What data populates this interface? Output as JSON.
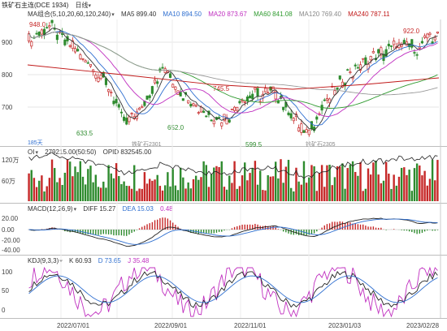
{
  "header": {
    "title": "铁矿石主连(DCE 1934)",
    "period": "日线",
    "ma_label": "MA组合(5,10,20,60,120,240)",
    "ma": [
      {
        "label": "MA5 899.40",
        "color": "#333333"
      },
      {
        "label": "MA10 894.50",
        "color": "#2f6fd0"
      },
      {
        "label": "MA20 873.67",
        "color": "#c030c0"
      },
      {
        "label": "MA60 841.08",
        "color": "#2e9a2e"
      },
      {
        "label": "MA120 769.40",
        "color": "#999999"
      },
      {
        "label": "MA240 787.11",
        "color": "#c01818"
      }
    ]
  },
  "price_panel": {
    "y_ticks": [
      "900",
      "800",
      "700"
    ],
    "annotations": {
      "high_left": "948.0",
      "high_right": "922.0",
      "low_1": "633.5",
      "low_2": "652.0",
      "mid": "745.5",
      "low_3": "599.5"
    },
    "watermarks": [
      "铁矿石2301",
      "铁矿石2305"
    ],
    "days_label": "185天"
  },
  "oi_panel": {
    "label": "OI",
    "values": "279215.00(50:50)",
    "opid": "OPID 832545.00",
    "y_ticks": [
      "120万",
      "60万"
    ]
  },
  "macd_panel": {
    "label": "MACD(12,26,9)",
    "diff": "DIFF 15.27",
    "dea": "DEA 15.03",
    "macd": "0.48",
    "y_ticks": [
      "20.00",
      "0.00",
      "-20.00",
      "-40.00"
    ]
  },
  "kdj_panel": {
    "label": "KDJ(9,3,3)",
    "k": "K 60.93",
    "d": "D 73.65",
    "j": "J 35.48",
    "y_ticks": [
      "100",
      "50",
      "0"
    ]
  },
  "x_axis": {
    "dates": [
      "2022/07/01",
      "2022/09/01",
      "2022/11/01",
      "2023/01/03",
      "2023/02/28"
    ]
  },
  "colors": {
    "up": "#c62828",
    "down": "#2e8b2e",
    "ma5": "#333333",
    "ma10": "#2f6fd0",
    "ma20": "#c030c0",
    "ma60": "#2e9a2e",
    "ma120": "#999999",
    "ma240": "#c01818"
  }
}
